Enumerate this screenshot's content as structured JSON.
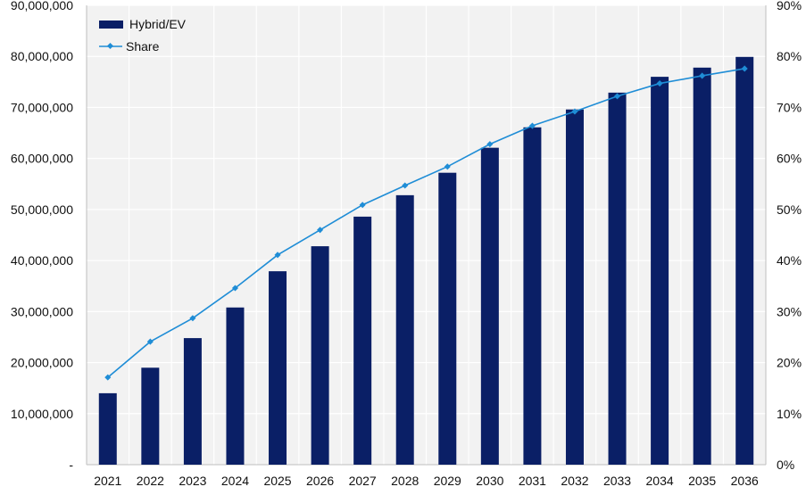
{
  "chart_data": {
    "type": "bar",
    "title": "",
    "xlabel": "",
    "ylabel": "",
    "categories": [
      "2021",
      "2022",
      "2023",
      "2024",
      "2025",
      "2026",
      "2027",
      "2028",
      "2029",
      "2030",
      "2031",
      "2032",
      "2033",
      "2034",
      "2035",
      "2036"
    ],
    "series": [
      {
        "name": "Hybrid/EV",
        "type": "bar",
        "axis": "left",
        "color": "#0a1f66",
        "values": [
          14000000,
          19000000,
          24800000,
          30800000,
          37900000,
          42800000,
          48600000,
          52800000,
          57200000,
          62100000,
          66100000,
          69600000,
          72900000,
          76000000,
          77800000,
          79900000
        ]
      },
      {
        "name": "Share",
        "type": "line",
        "axis": "right",
        "color": "#1f8dd6",
        "values": [
          17.1,
          24.1,
          28.7,
          34.6,
          41.1,
          46.0,
          50.9,
          54.7,
          58.4,
          62.8,
          66.4,
          69.2,
          72.2,
          74.7,
          76.2,
          77.6
        ]
      }
    ],
    "ylim": [
      0,
      90000000
    ],
    "y2lim": [
      0,
      90
    ],
    "y_ticks": [
      "-",
      "10,000,000",
      "20,000,000",
      "30,000,000",
      "40,000,000",
      "50,000,000",
      "60,000,000",
      "70,000,000",
      "80,000,000",
      "90,000,000"
    ],
    "y2_ticks": [
      "0%",
      "10%",
      "20%",
      "30%",
      "40%",
      "50%",
      "60%",
      "70%",
      "80%",
      "90%"
    ],
    "legend": {
      "position": "top-left",
      "entries": [
        "Hybrid/EV",
        "Share"
      ]
    },
    "grid": true
  }
}
